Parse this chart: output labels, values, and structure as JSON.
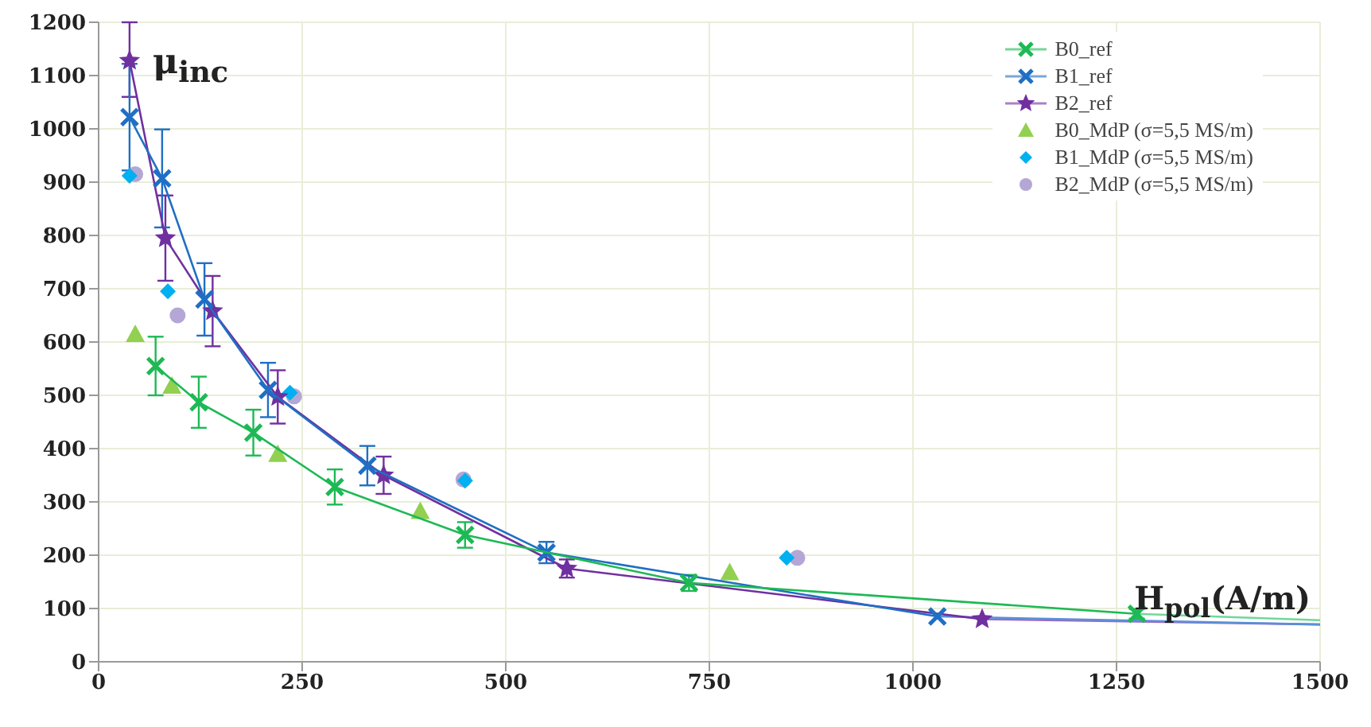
{
  "chart_data": {
    "type": "scatter",
    "xlabel": "H$_{pol}$(A/m)",
    "ylabel": "μ$_{inc}$",
    "xlim": [
      0,
      1500
    ],
    "xticks": [
      0,
      250,
      500,
      750,
      1000,
      1250,
      1500
    ],
    "ylim": [
      0,
      1200
    ],
    "yticks": [
      0,
      100,
      200,
      300,
      400,
      500,
      600,
      700,
      800,
      900,
      1000,
      1100,
      1200
    ],
    "grid": true,
    "legend": "top right",
    "series": [
      {
        "name": "B0_ref",
        "type": "line",
        "color": "#1db954",
        "marker": "cross",
        "x": [
          70,
          123,
          190,
          290,
          450,
          725,
          1275
        ],
        "values": [
          555,
          487,
          430,
          328,
          238,
          148,
          90
        ],
        "errors": [
          55,
          48,
          43,
          33,
          24,
          15,
          9
        ]
      },
      {
        "name": "B1_ref",
        "type": "line",
        "color": "#1f6fc4",
        "marker": "cross",
        "x": [
          38,
          78,
          130,
          208,
          330,
          550,
          1030
        ],
        "values": [
          1022,
          907,
          680,
          510,
          368,
          205,
          85
        ],
        "errors": [
          100,
          92,
          68,
          51,
          37,
          20,
          null
        ]
      },
      {
        "name": "B2_ref",
        "type": "line",
        "color": "#7030a0",
        "marker": "star",
        "x": [
          38,
          82,
          140,
          220,
          350,
          575,
          1085
        ],
        "values": [
          1128,
          795,
          658,
          497,
          350,
          175,
          80
        ],
        "errors": [
          [
            1060,
            1200
          ],
          80,
          66,
          50,
          35,
          17,
          null
        ]
      },
      {
        "name": "B0_MdP (σ=5,5 MS/m)",
        "color": "#92d050",
        "marker": "triangle",
        "x": [
          45,
          90,
          220,
          395,
          775
        ],
        "values": [
          615,
          518,
          390,
          283,
          168
        ]
      },
      {
        "name": "B1_MdP (σ=5,5 MS/m)",
        "color": "#00b0f0",
        "marker": "diamond",
        "x": [
          38,
          85,
          235,
          450,
          845
        ],
        "values": [
          912,
          695,
          505,
          340,
          195
        ]
      },
      {
        "name": "B2_MdP (σ=5,5 MS/m)",
        "color": "#b4a7d6",
        "marker": "circle",
        "x": [
          45,
          97,
          240,
          448,
          858
        ],
        "values": [
          915,
          650,
          498,
          342,
          195
        ]
      },
      {
        "type": "line",
        "color": "#6fd89a",
        "marker": "none",
        "x": [
          1275,
          1500
        ],
        "values": [
          90,
          78
        ]
      },
      {
        "type": "line",
        "color": "#5a8fd8",
        "marker": "none",
        "x": [
          1030,
          1500
        ],
        "values": [
          85,
          70
        ]
      },
      {
        "type": "line",
        "color": "#9a6cc4",
        "marker": "none",
        "x": [
          1085,
          1500
        ],
        "values": [
          80,
          70
        ]
      }
    ]
  }
}
